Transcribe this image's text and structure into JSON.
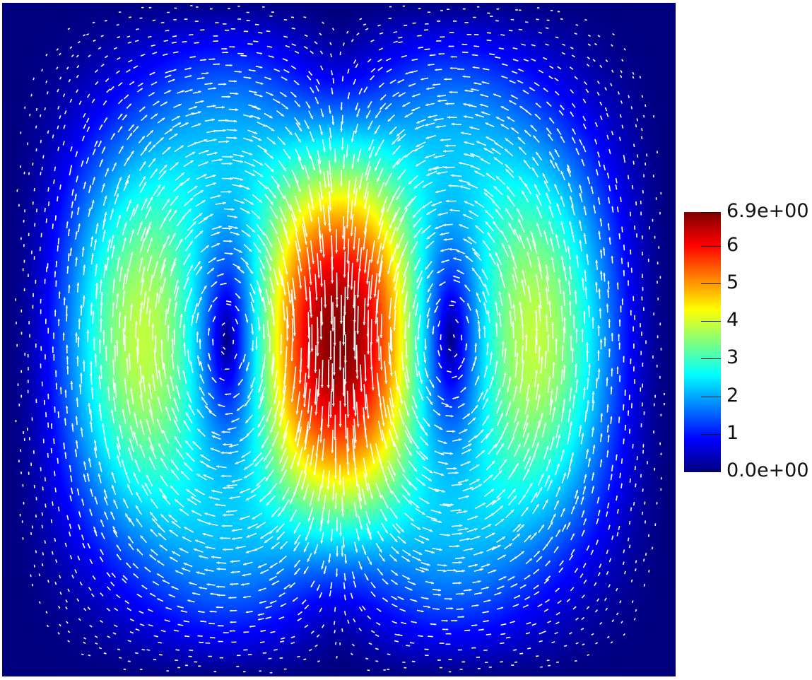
{
  "chart_data": {
    "type": "heatmap",
    "title": "",
    "xlabel": "",
    "ylabel": "",
    "field": "velocity magnitude with velocity vector glyphs",
    "colormap": "jet",
    "colors": {
      "background": "#ffffff",
      "arrows": "#ffffff",
      "colormap_stops": [
        "#00007f",
        "#0000ff",
        "#00ffff",
        "#ffff00",
        "#ff0000",
        "#7f0000"
      ]
    },
    "range": [
      0.0,
      6.9
    ],
    "colorbar": {
      "placement": "right",
      "ticks": [
        {
          "value": 6.9,
          "label": "6.9e+00"
        },
        {
          "value": 6,
          "label": "6"
        },
        {
          "value": 5,
          "label": "5"
        },
        {
          "value": 4,
          "label": "4"
        },
        {
          "value": 3,
          "label": "3"
        },
        {
          "value": 2,
          "label": "2"
        },
        {
          "value": 1,
          "label": "1"
        },
        {
          "value": 0,
          "label": "0.0e+00"
        }
      ]
    },
    "features": [
      {
        "name": "central downward jet maximum",
        "x": 0.5,
        "y": 0.43,
        "value": 6.9
      },
      {
        "name": "left vortex core",
        "x": 0.3,
        "y": 0.45,
        "value": 0.0
      },
      {
        "name": "right vortex core",
        "x": 0.7,
        "y": 0.45,
        "value": 0.0
      },
      {
        "name": "left upward flow lobe",
        "x": 0.15,
        "y": 0.46,
        "value": 4.3
      },
      {
        "name": "right upward flow lobe",
        "x": 0.85,
        "y": 0.46,
        "value": 4.3
      }
    ]
  }
}
